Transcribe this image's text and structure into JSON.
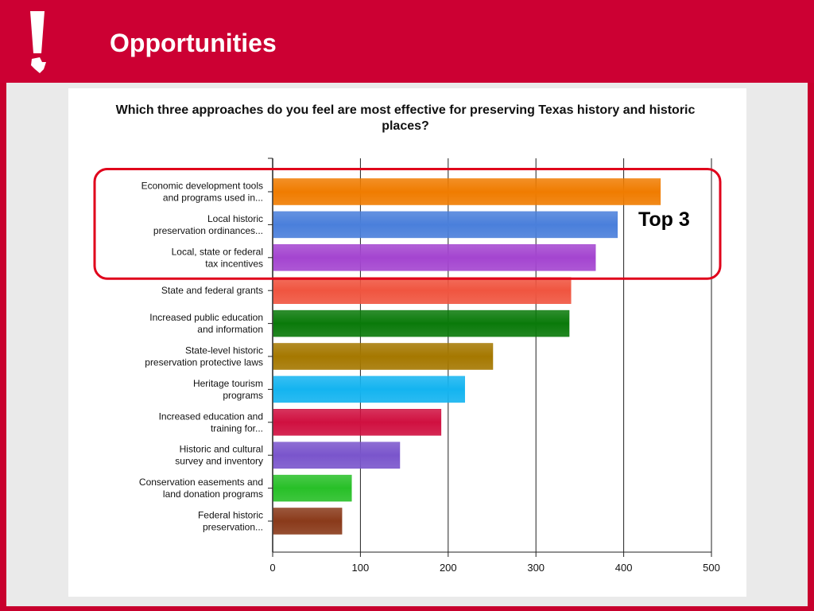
{
  "slide": {
    "title": "Opportunities"
  },
  "annotation": {
    "label": "Top 3",
    "color": "#e0001b",
    "highlight_categories": [
      0,
      1,
      2
    ]
  },
  "chart_data": {
    "type": "bar",
    "orientation": "horizontal",
    "title": "Which three approaches do you feel are most effective for preserving Texas history and historic places?",
    "xlabel": "",
    "ylabel": "",
    "xlim": [
      0,
      500
    ],
    "xticks": [
      0,
      100,
      200,
      300,
      400,
      500
    ],
    "grid": true,
    "categories": [
      [
        "Economic development tools",
        "and programs used in..."
      ],
      [
        "Local historic",
        "preservation ordinances..."
      ],
      [
        "Local, state or federal",
        "tax incentives"
      ],
      [
        "State and federal grants"
      ],
      [
        "Increased public education",
        "and information"
      ],
      [
        "State-level historic",
        "preservation protective laws"
      ],
      [
        "Heritage tourism",
        "programs"
      ],
      [
        "Increased education and",
        "training for..."
      ],
      [
        "Historic and cultural",
        "survey and inventory"
      ],
      [
        "Conservation easements and",
        "land donation programs"
      ],
      [
        "Federal historic",
        "preservation..."
      ]
    ],
    "values": [
      441,
      392,
      367,
      339,
      337,
      250,
      218,
      191,
      144,
      89,
      78
    ],
    "colors": [
      "#f07c00",
      "#4a7fdb",
      "#a445d0",
      "#f05540",
      "#0a7a0a",
      "#a57800",
      "#14b4f0",
      "#d01040",
      "#7a55cc",
      "#28c028",
      "#8a3a1a"
    ]
  }
}
